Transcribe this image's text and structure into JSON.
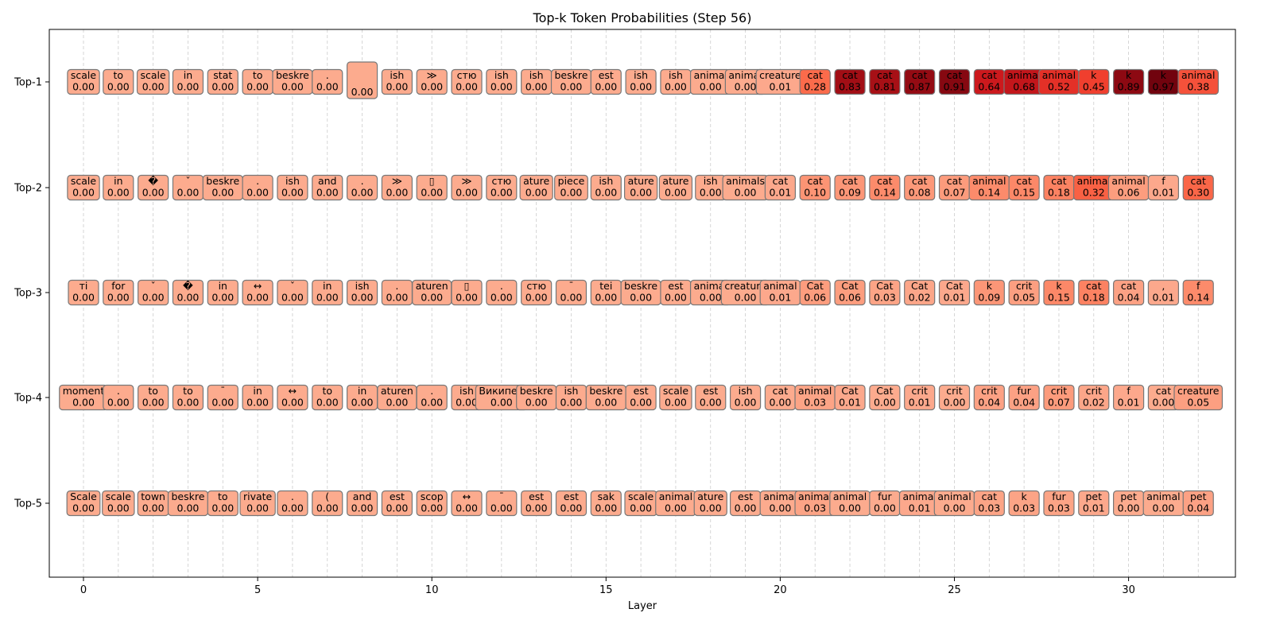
{
  "chart_data": {
    "type": "table",
    "title": "Top-k Token Probabilities (Step 56)",
    "xlabel": "Layer",
    "ylabel": "",
    "xlim": [
      -1,
      32.5
    ],
    "xticks": [
      0,
      5,
      10,
      15,
      20,
      25,
      30
    ],
    "grid": "vertical dashed",
    "colormap": "Reds",
    "rows": [
      "Top-1",
      "Top-2",
      "Top-3",
      "Top-4",
      "Top-5"
    ],
    "layers": [
      0,
      1,
      2,
      3,
      4,
      5,
      6,
      7,
      8,
      9,
      10,
      11,
      12,
      13,
      14,
      15,
      16,
      17,
      18,
      19,
      20,
      21,
      22,
      23,
      24,
      25,
      26,
      27,
      28,
      29,
      30,
      31,
      32
    ],
    "cells": [
      [
        {
          "token": "scale",
          "prob": "0.00"
        },
        {
          "token": "to",
          "prob": "0.00"
        },
        {
          "token": "scale",
          "prob": "0.00"
        },
        {
          "token": "in",
          "prob": "0.00"
        },
        {
          "token": "stat",
          "prob": "0.00"
        },
        {
          "token": "to",
          "prob": "0.00"
        },
        {
          "token": "beskre",
          "prob": "0.00"
        },
        {
          "token": ".",
          "prob": "0.00"
        },
        {
          "token": "\n",
          "prob": "0.00"
        },
        {
          "token": "ish",
          "prob": "0.00"
        },
        {
          "token": "≫",
          "prob": "0.00"
        },
        {
          "token": "стю",
          "prob": "0.00"
        },
        {
          "token": "ish",
          "prob": "0.00"
        },
        {
          "token": "ish",
          "prob": "0.00"
        },
        {
          "token": "beskre",
          "prob": "0.00"
        },
        {
          "token": "est",
          "prob": "0.00"
        },
        {
          "token": "ish",
          "prob": "0.00"
        },
        {
          "token": "ish",
          "prob": "0.00"
        },
        {
          "token": "animal",
          "prob": "0.00"
        },
        {
          "token": "animal",
          "prob": "0.00"
        },
        {
          "token": "creature",
          "prob": "0.01"
        },
        {
          "token": "cat",
          "prob": "0.28"
        },
        {
          "token": "cat",
          "prob": "0.83"
        },
        {
          "token": "cat",
          "prob": "0.81"
        },
        {
          "token": "cat",
          "prob": "0.87"
        },
        {
          "token": "cat",
          "prob": "0.91"
        },
        {
          "token": "cat",
          "prob": "0.64"
        },
        {
          "token": "animal",
          "prob": "0.68"
        },
        {
          "token": "animal",
          "prob": "0.52"
        },
        {
          "token": "k",
          "prob": "0.45"
        },
        {
          "token": "k",
          "prob": "0.89"
        },
        {
          "token": "k",
          "prob": "0.97"
        },
        {
          "token": "animal",
          "prob": "0.38"
        }
      ],
      [
        {
          "token": "scale",
          "prob": "0.00"
        },
        {
          "token": "in",
          "prob": "0.00"
        },
        {
          "token": "�",
          "prob": "0.00"
        },
        {
          "token": "ˇ",
          "prob": "0.00"
        },
        {
          "token": "beskre",
          "prob": "0.00"
        },
        {
          "token": ".",
          "prob": "0.00"
        },
        {
          "token": "ish",
          "prob": "0.00"
        },
        {
          "token": "and",
          "prob": "0.00"
        },
        {
          "token": ".",
          "prob": "0.00"
        },
        {
          "token": "≫",
          "prob": "0.00"
        },
        {
          "token": "▯",
          "prob": "0.00"
        },
        {
          "token": "≫",
          "prob": "0.00"
        },
        {
          "token": "стю",
          "prob": "0.00"
        },
        {
          "token": "ature",
          "prob": "0.00"
        },
        {
          "token": "piece",
          "prob": "0.00"
        },
        {
          "token": "ish",
          "prob": "0.00"
        },
        {
          "token": "ature",
          "prob": "0.00"
        },
        {
          "token": "ature",
          "prob": "0.00"
        },
        {
          "token": "ish",
          "prob": "0.00"
        },
        {
          "token": "animals",
          "prob": "0.00"
        },
        {
          "token": "cat",
          "prob": "0.01"
        },
        {
          "token": "cat",
          "prob": "0.10"
        },
        {
          "token": "cat",
          "prob": "0.09"
        },
        {
          "token": "cat",
          "prob": "0.14"
        },
        {
          "token": "cat",
          "prob": "0.08"
        },
        {
          "token": "cat",
          "prob": "0.07"
        },
        {
          "token": "animal",
          "prob": "0.14"
        },
        {
          "token": "cat",
          "prob": "0.15"
        },
        {
          "token": "cat",
          "prob": "0.18"
        },
        {
          "token": "animal",
          "prob": "0.32"
        },
        {
          "token": "animal",
          "prob": "0.06"
        },
        {
          "token": "f",
          "prob": "0.01"
        },
        {
          "token": "cat",
          "prob": "0.30"
        }
      ],
      [
        {
          "token": "ті",
          "prob": "0.00"
        },
        {
          "token": "for",
          "prob": "0.00"
        },
        {
          "token": "ˇ",
          "prob": "0.00"
        },
        {
          "token": "�",
          "prob": "0.00"
        },
        {
          "token": "in",
          "prob": "0.00"
        },
        {
          "token": "↔",
          "prob": "0.00"
        },
        {
          "token": "ˇ",
          "prob": "0.00"
        },
        {
          "token": "in",
          "prob": "0.00"
        },
        {
          "token": "ish",
          "prob": "0.00"
        },
        {
          "token": ".",
          "prob": "0.00"
        },
        {
          "token": "aturen",
          "prob": "0.00"
        },
        {
          "token": "▯",
          "prob": "0.00"
        },
        {
          "token": ".",
          "prob": "0.00"
        },
        {
          "token": "стю",
          "prob": "0.00"
        },
        {
          "token": "¯",
          "prob": "0.00"
        },
        {
          "token": "tei",
          "prob": "0.00"
        },
        {
          "token": "beskre",
          "prob": "0.00"
        },
        {
          "token": "est",
          "prob": "0.00"
        },
        {
          "token": "animal",
          "prob": "0.00"
        },
        {
          "token": "creature",
          "prob": "0.00"
        },
        {
          "token": "animal",
          "prob": "0.01"
        },
        {
          "token": "Cat",
          "prob": "0.06"
        },
        {
          "token": "Cat",
          "prob": "0.06"
        },
        {
          "token": "Cat",
          "prob": "0.03"
        },
        {
          "token": "Cat",
          "prob": "0.02"
        },
        {
          "token": "Cat",
          "prob": "0.01"
        },
        {
          "token": "k",
          "prob": "0.09"
        },
        {
          "token": "crit",
          "prob": "0.05"
        },
        {
          "token": "k",
          "prob": "0.15"
        },
        {
          "token": "cat",
          "prob": "0.18"
        },
        {
          "token": "cat",
          "prob": "0.04"
        },
        {
          "token": ",",
          "prob": "0.01"
        },
        {
          "token": "f",
          "prob": "0.14"
        }
      ],
      [
        {
          "token": "moment",
          "prob": "0.00"
        },
        {
          "token": ".",
          "prob": "0.00"
        },
        {
          "token": "to",
          "prob": "0.00"
        },
        {
          "token": "to",
          "prob": "0.00"
        },
        {
          "token": "¯",
          "prob": "0.00"
        },
        {
          "token": "in",
          "prob": "0.00"
        },
        {
          "token": "↔",
          "prob": "0.00"
        },
        {
          "token": "to",
          "prob": "0.00"
        },
        {
          "token": "in",
          "prob": "0.00"
        },
        {
          "token": "aturen",
          "prob": "0.00"
        },
        {
          "token": ".",
          "prob": "0.00"
        },
        {
          "token": "ish",
          "prob": "0.00"
        },
        {
          "token": "Википед",
          "prob": "0.00"
        },
        {
          "token": "beskre",
          "prob": "0.00"
        },
        {
          "token": "ish",
          "prob": "0.00"
        },
        {
          "token": "beskre",
          "prob": "0.00"
        },
        {
          "token": "est",
          "prob": "0.00"
        },
        {
          "token": "scale",
          "prob": "0.00"
        },
        {
          "token": "est",
          "prob": "0.00"
        },
        {
          "token": "ish",
          "prob": "0.00"
        },
        {
          "token": "cat",
          "prob": "0.00"
        },
        {
          "token": "animal",
          "prob": "0.03"
        },
        {
          "token": "Cat",
          "prob": "0.01"
        },
        {
          "token": "Cat",
          "prob": "0.00"
        },
        {
          "token": "crit",
          "prob": "0.01"
        },
        {
          "token": "crit",
          "prob": "0.00"
        },
        {
          "token": "crit",
          "prob": "0.04"
        },
        {
          "token": "fur",
          "prob": "0.04"
        },
        {
          "token": "crit",
          "prob": "0.07"
        },
        {
          "token": "crit",
          "prob": "0.02"
        },
        {
          "token": "f",
          "prob": "0.01"
        },
        {
          "token": "cat",
          "prob": "0.00"
        },
        {
          "token": "creature",
          "prob": "0.05"
        }
      ],
      [
        {
          "token": "Scale",
          "prob": "0.00"
        },
        {
          "token": "scale",
          "prob": "0.00"
        },
        {
          "token": "town",
          "prob": "0.00"
        },
        {
          "token": "beskre",
          "prob": "0.00"
        },
        {
          "token": "to",
          "prob": "0.00"
        },
        {
          "token": "rivate",
          "prob": "0.00"
        },
        {
          "token": ".",
          "prob": "0.00"
        },
        {
          "token": "(",
          "prob": "0.00"
        },
        {
          "token": "and",
          "prob": "0.00"
        },
        {
          "token": "est",
          "prob": "0.00"
        },
        {
          "token": "scop",
          "prob": "0.00"
        },
        {
          "token": "↔",
          "prob": "0.00"
        },
        {
          "token": "¯",
          "prob": "0.00"
        },
        {
          "token": "est",
          "prob": "0.00"
        },
        {
          "token": "est",
          "prob": "0.00"
        },
        {
          "token": "sak",
          "prob": "0.00"
        },
        {
          "token": "scale",
          "prob": "0.00"
        },
        {
          "token": "animal",
          "prob": "0.00"
        },
        {
          "token": "ature",
          "prob": "0.00"
        },
        {
          "token": "est",
          "prob": "0.00"
        },
        {
          "token": "animal",
          "prob": "0.00"
        },
        {
          "token": "animal",
          "prob": "0.03"
        },
        {
          "token": "animal",
          "prob": "0.00"
        },
        {
          "token": "fur",
          "prob": "0.00"
        },
        {
          "token": "animal",
          "prob": "0.01"
        },
        {
          "token": "animal",
          "prob": "0.00"
        },
        {
          "token": "cat",
          "prob": "0.03"
        },
        {
          "token": "k",
          "prob": "0.03"
        },
        {
          "token": "fur",
          "prob": "0.03"
        },
        {
          "token": "pet",
          "prob": "0.01"
        },
        {
          "token": "pet",
          "prob": "0.00"
        },
        {
          "token": "animal",
          "prob": "0.00"
        },
        {
          "token": "pet",
          "prob": "0.04"
        }
      ]
    ]
  }
}
